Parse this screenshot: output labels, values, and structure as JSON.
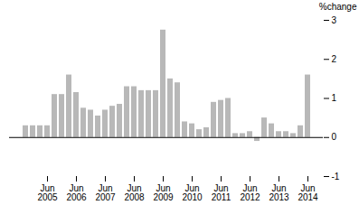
{
  "chart_data": {
    "type": "bar",
    "ylabel": "%change",
    "categories": [
      null,
      null,
      null,
      "Jun\n2005",
      null,
      null,
      null,
      "Jun\n2006",
      null,
      null,
      null,
      "Jun\n2007",
      null,
      null,
      null,
      "Jun\n2008",
      null,
      null,
      null,
      "Jun\n2009",
      null,
      null,
      null,
      "Jun\n2010",
      null,
      null,
      null,
      "Jun\n2011",
      null,
      null,
      null,
      "Jun\n2012",
      null,
      null,
      null,
      "Jun\n2013",
      null,
      null,
      null,
      "Jun\n2014"
    ],
    "values": [
      0.3,
      0.3,
      0.3,
      0.3,
      1.1,
      1.1,
      1.6,
      1.15,
      0.75,
      0.7,
      0.55,
      0.7,
      0.8,
      0.85,
      1.3,
      1.3,
      1.2,
      1.2,
      1.2,
      2.75,
      1.5,
      1.4,
      0.4,
      0.35,
      0.2,
      0.25,
      0.9,
      0.95,
      1.0,
      0.1,
      0.1,
      0.15,
      -0.1,
      0.5,
      0.35,
      0.15,
      0.15,
      0.1,
      0.3,
      1.6
    ],
    "color": "#b8b8b8",
    "ylim": [
      -1,
      3
    ],
    "yticks": [
      -1,
      0,
      1,
      2,
      3
    ],
    "grid": false
  }
}
